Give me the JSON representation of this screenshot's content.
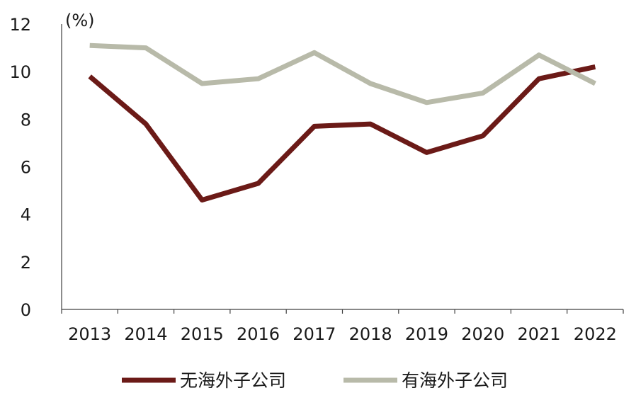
{
  "chart_data": {
    "type": "line",
    "title": "",
    "ylabel": "(%)",
    "xlabel": "",
    "categories": [
      "2013",
      "2014",
      "2015",
      "2016",
      "2017",
      "2018",
      "2019",
      "2020",
      "2021",
      "2022"
    ],
    "ylim": [
      0,
      12
    ],
    "yticks": [
      0,
      2,
      4,
      6,
      8,
      10,
      12
    ],
    "grid": false,
    "legend_position": "bottom",
    "series": [
      {
        "name": "无海外子公司",
        "color": "#6b1a17",
        "values": [
          9.8,
          7.8,
          4.6,
          5.3,
          7.7,
          7.8,
          6.6,
          7.3,
          9.7,
          10.2
        ]
      },
      {
        "name": "有海外子公司",
        "color": "#b8baa9",
        "values": [
          11.1,
          11.0,
          9.5,
          9.7,
          10.8,
          9.5,
          8.7,
          9.1,
          10.7,
          9.5
        ]
      }
    ]
  }
}
